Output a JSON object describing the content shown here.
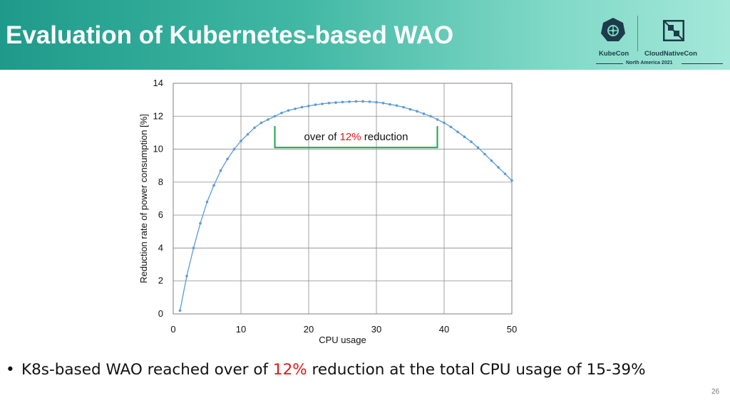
{
  "slide": {
    "title": "Evaluation of Kubernetes-based WAO",
    "page_number": "26"
  },
  "logo": {
    "kubecon": "KubeCon",
    "cloudnativecon": "CloudNativeCon",
    "event": "North America 2021",
    "icons": [
      "kubernetes-helm-icon",
      "cncf-logo-icon"
    ]
  },
  "bullet": {
    "marker": "•",
    "text_before": "K8s-based WAO reached over of ",
    "highlight": "12%",
    "text_after": " reduction at the total CPU usage of 15-39%"
  },
  "colors": {
    "banner_start": "#1f9a8a",
    "banner_end": "#a4e8d9",
    "line": "#5b9bd5",
    "bracket": "#1aa34a",
    "highlight": "#e01818"
  },
  "chart_data": {
    "type": "line",
    "xlabel": "CPU usage",
    "ylabel": "Reduction rate of power consumption [%]",
    "xlim": [
      0,
      50
    ],
    "ylim": [
      0,
      14
    ],
    "xticks": [
      0,
      10,
      20,
      30,
      40,
      50
    ],
    "yticks": [
      0,
      2,
      4,
      6,
      8,
      10,
      12,
      14
    ],
    "grid": true,
    "series": [
      {
        "x": [
          1,
          2,
          3,
          4,
          5,
          6,
          7,
          8,
          9,
          10,
          11,
          12,
          13,
          14,
          15,
          16,
          17,
          18,
          19,
          20,
          21,
          22,
          23,
          24,
          25,
          26,
          27,
          28,
          29,
          30,
          31,
          32,
          33,
          34,
          35,
          36,
          37,
          38,
          39,
          40,
          41,
          42,
          43,
          44,
          45,
          46,
          47,
          48,
          49,
          50
        ],
        "values": [
          0.2,
          2.3,
          4.0,
          5.5,
          6.8,
          7.8,
          8.7,
          9.4,
          10.0,
          10.5,
          10.9,
          11.3,
          11.6,
          11.8,
          12.0,
          12.2,
          12.35,
          12.45,
          12.55,
          12.62,
          12.7,
          12.75,
          12.8,
          12.83,
          12.86,
          12.88,
          12.9,
          12.9,
          12.88,
          12.85,
          12.8,
          12.72,
          12.65,
          12.55,
          12.42,
          12.3,
          12.15,
          12.0,
          11.8,
          11.6,
          11.35,
          11.05,
          10.75,
          10.45,
          10.1,
          9.7,
          9.3,
          8.9,
          8.5,
          8.1
        ]
      }
    ],
    "annotation": {
      "text_before": "over of ",
      "highlight": "12%",
      "text_after": " reduction",
      "x_range": [
        15,
        39
      ]
    }
  }
}
